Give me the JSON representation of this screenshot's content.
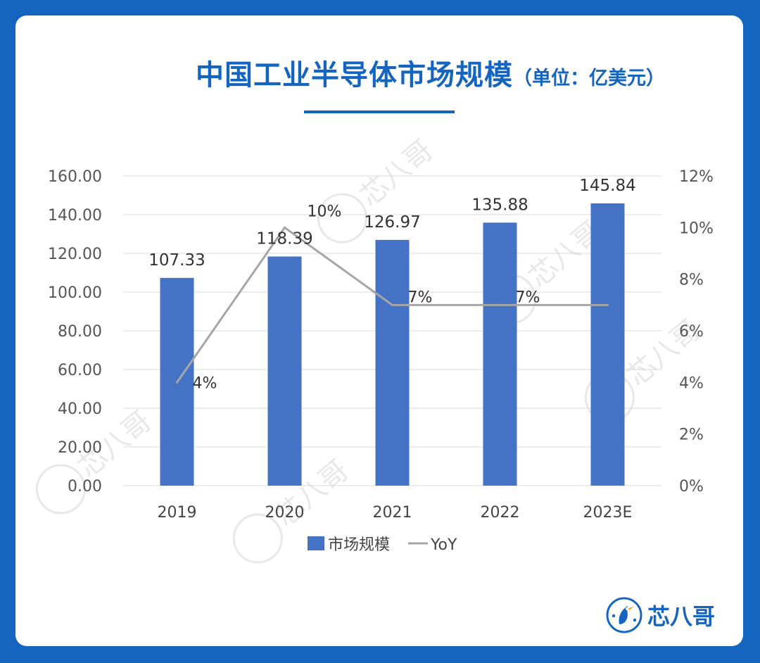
{
  "title": "中国工业半导体市场规模",
  "title_unit": "（单位：亿美元）",
  "brand": "芯八哥",
  "watermark": "芯八哥",
  "colors": {
    "bar": "#4472c4",
    "line": "#a6a6a6",
    "title": "#1565c0",
    "background": "#1565c0"
  },
  "chart_data": {
    "type": "bar",
    "categories": [
      "2019",
      "2020",
      "2021",
      "2022",
      "2023E"
    ],
    "series": [
      {
        "name": "市场规模",
        "type": "bar",
        "axis": "left",
        "values": [
          107.33,
          118.39,
          126.97,
          135.88,
          145.84
        ],
        "labels": [
          "107.33",
          "118.39",
          "126.97",
          "135.88",
          "145.84"
        ]
      },
      {
        "name": "YoY",
        "type": "line",
        "axis": "right",
        "values": [
          4,
          10,
          7,
          7,
          7
        ],
        "labels": [
          "4%",
          "10%",
          "7%",
          "7%",
          null
        ]
      }
    ],
    "y_left": {
      "min": 0,
      "max": 160,
      "step": 20,
      "tick_labels": [
        "0.00",
        "20.00",
        "40.00",
        "60.00",
        "80.00",
        "100.00",
        "120.00",
        "140.00",
        "160.00"
      ]
    },
    "y_right": {
      "min": 0,
      "max": 12,
      "step": 2,
      "tick_labels": [
        "0%",
        "2%",
        "4%",
        "6%",
        "8%",
        "10%",
        "12%"
      ]
    },
    "grid": true,
    "legend": {
      "position": "bottom",
      "items": [
        "市场规模",
        "YoY"
      ]
    }
  }
}
